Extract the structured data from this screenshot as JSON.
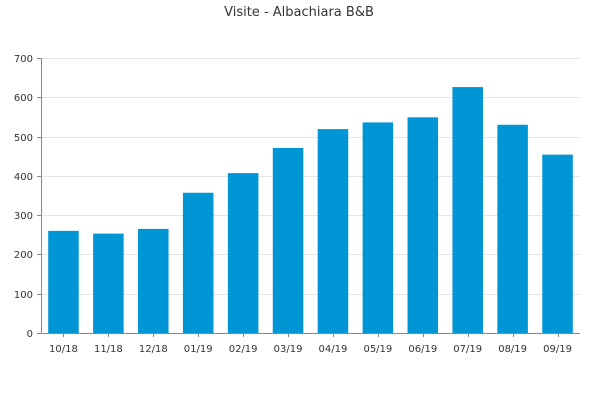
{
  "chart_data": {
    "type": "bar",
    "title": "Visite - Albachiara B&B",
    "xlabel": "",
    "ylabel": "",
    "categories": [
      "10/18",
      "11/18",
      "12/18",
      "01/19",
      "02/19",
      "03/19",
      "04/19",
      "05/19",
      "06/19",
      "07/19",
      "08/19",
      "09/19"
    ],
    "values": [
      260,
      253,
      265,
      357,
      407,
      471,
      519,
      536,
      549,
      626,
      530,
      454
    ],
    "ylim": [
      0,
      700
    ],
    "yticks": [
      0,
      100,
      200,
      300,
      400,
      500,
      600,
      700
    ],
    "bar_color": "#0096d6",
    "gridline_color": "#e6e6e6",
    "axis_color": "#888888",
    "grid": true,
    "legend": "none"
  }
}
